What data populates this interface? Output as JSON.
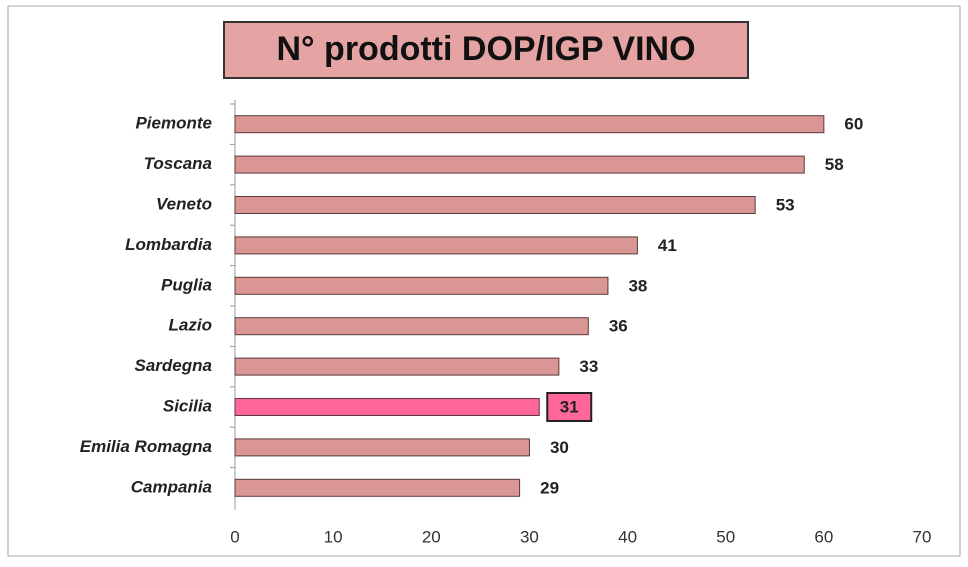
{
  "chart_data": {
    "type": "bar",
    "orientation": "horizontal",
    "title": "N° prodotti DOP/IGP VINO",
    "categories": [
      "Piemonte",
      "Toscana",
      "Veneto",
      "Lombardia",
      "Puglia",
      "Lazio",
      "Sardegna",
      "Sicilia",
      "Emilia Romagna",
      "Campania"
    ],
    "values": [
      60,
      58,
      53,
      41,
      38,
      36,
      33,
      31,
      30,
      29
    ],
    "colors": [
      "#d99694",
      "#d99694",
      "#d99694",
      "#d99694",
      "#d99694",
      "#d99694",
      "#d99694",
      "#ff6699",
      "#d99694",
      "#d99694"
    ],
    "highlight": "Sicilia",
    "xlim": [
      0,
      70
    ],
    "xticks": [
      0,
      10,
      20,
      30,
      40,
      50,
      60,
      70
    ],
    "grid": false
  }
}
